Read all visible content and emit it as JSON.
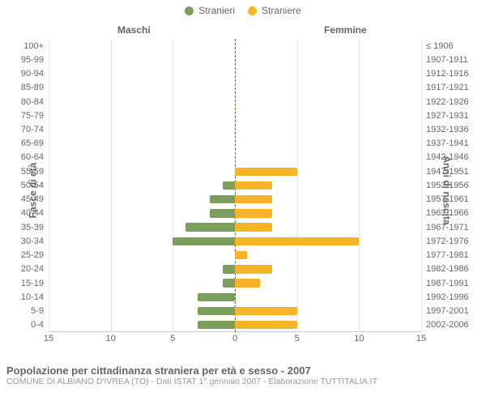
{
  "chart": {
    "type": "population-pyramid",
    "legend": {
      "male": {
        "label": "Stranieri",
        "color": "#7b9e5e"
      },
      "female": {
        "label": "Straniere",
        "color": "#f7b428"
      }
    },
    "headers": {
      "male": "Maschi",
      "female": "Femmine"
    },
    "axis_titles": {
      "left": "Fasce di età",
      "right": "Anni di nascita"
    },
    "x": {
      "max": 15,
      "ticks": [
        -15,
        -10,
        -5,
        0,
        5,
        10,
        15
      ],
      "tick_labels": [
        "15",
        "10",
        "5",
        "0",
        "5",
        "10",
        "15"
      ],
      "gridline_color": "#e6e6e6",
      "centerline_color": "#54683B"
    },
    "style": {
      "background_color": "#ffffff",
      "tick_font_color": "#666666",
      "tick_font_size": 11,
      "bar_height_pct": 60
    },
    "rows": [
      {
        "age": "100+",
        "birth": "≤ 1906",
        "m": 0,
        "f": 0
      },
      {
        "age": "95-99",
        "birth": "1907-1911",
        "m": 0,
        "f": 0
      },
      {
        "age": "90-94",
        "birth": "1912-1916",
        "m": 0,
        "f": 0
      },
      {
        "age": "85-89",
        "birth": "1917-1921",
        "m": 0,
        "f": 0
      },
      {
        "age": "80-84",
        "birth": "1922-1926",
        "m": 0,
        "f": 0
      },
      {
        "age": "75-79",
        "birth": "1927-1931",
        "m": 0,
        "f": 0
      },
      {
        "age": "70-74",
        "birth": "1932-1936",
        "m": 0,
        "f": 0
      },
      {
        "age": "65-69",
        "birth": "1937-1941",
        "m": 0,
        "f": 0
      },
      {
        "age": "60-64",
        "birth": "1942-1946",
        "m": 0,
        "f": 0
      },
      {
        "age": "55-59",
        "birth": "1947-1951",
        "m": 0,
        "f": 5
      },
      {
        "age": "50-54",
        "birth": "1952-1956",
        "m": 1,
        "f": 3
      },
      {
        "age": "45-49",
        "birth": "1957-1961",
        "m": 2,
        "f": 3
      },
      {
        "age": "40-44",
        "birth": "1962-1966",
        "m": 2,
        "f": 3
      },
      {
        "age": "35-39",
        "birth": "1967-1971",
        "m": 4,
        "f": 3
      },
      {
        "age": "30-34",
        "birth": "1972-1976",
        "m": 5,
        "f": 10
      },
      {
        "age": "25-29",
        "birth": "1977-1981",
        "m": 0,
        "f": 1
      },
      {
        "age": "20-24",
        "birth": "1982-1986",
        "m": 1,
        "f": 3
      },
      {
        "age": "15-19",
        "birth": "1987-1991",
        "m": 1,
        "f": 2
      },
      {
        "age": "10-14",
        "birth": "1992-1996",
        "m": 3,
        "f": 0
      },
      {
        "age": "5-9",
        "birth": "1997-2001",
        "m": 3,
        "f": 5
      },
      {
        "age": "0-4",
        "birth": "2002-2006",
        "m": 3,
        "f": 5
      }
    ]
  },
  "caption": {
    "title": "Popolazione per cittadinanza straniera per età e sesso - 2007",
    "subtitle": "COMUNE DI ALBIANO D'IVREA (TO) - Dati ISTAT 1° gennaio 2007 - Elaborazione TUTTITALIA.IT",
    "title_color": "#666666",
    "title_fontsize": 13,
    "subtitle_color": "#999999",
    "subtitle_fontsize": 10.5
  }
}
